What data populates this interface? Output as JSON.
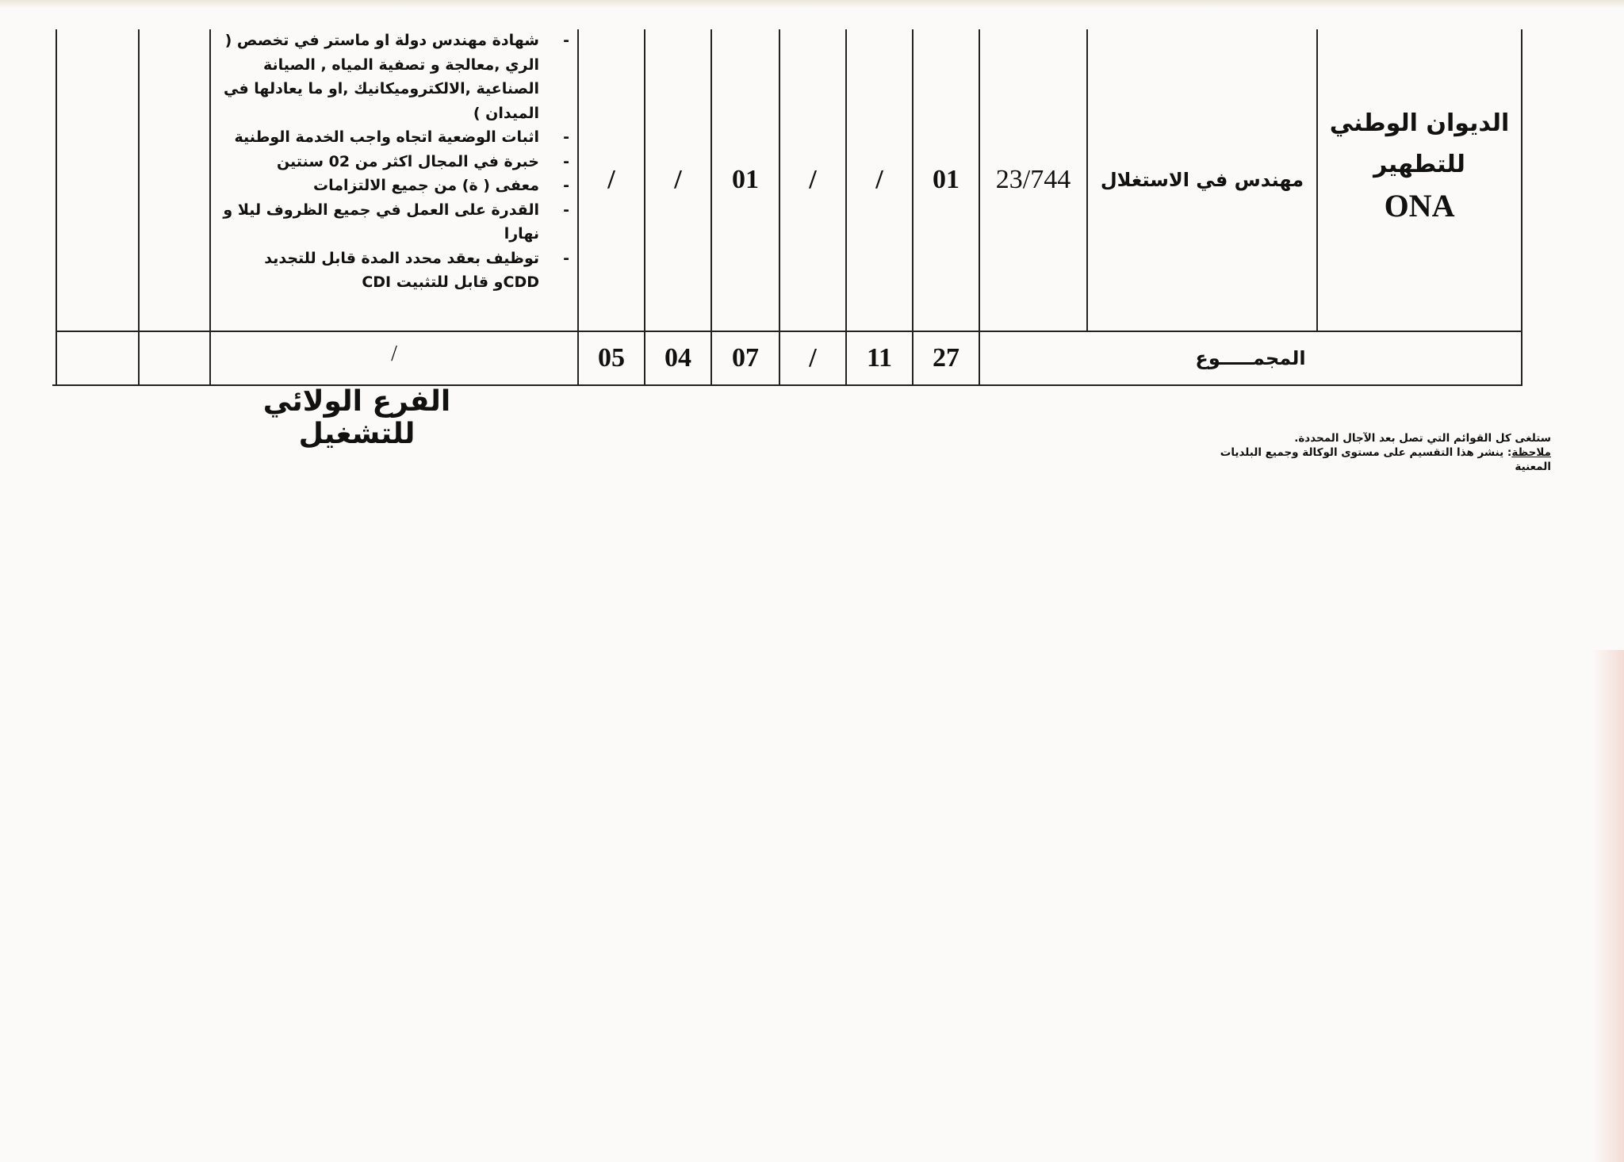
{
  "row": {
    "organization": {
      "line1": "الديوان الوطني",
      "line2": "للتطهير",
      "abbr": "ONA"
    },
    "position": "مهندس في الاستغلال",
    "code": "23/744",
    "counts": [
      "01",
      "/",
      "/",
      "01",
      "/",
      "/"
    ],
    "requirements": [
      "شهادة مهندس دولة او ماستر في تخصص ( الري ,معالجة و تصفية المياه , الصيانة الصناعية ,الالكتروميكانيك ,او ما يعادلها في الميدان )",
      "اثبات الوضعية اتجاه واجب الخدمة الوطنية",
      "خبرة في المجال اكثر من 02 سنتين",
      "معفى ( ة) من جميع الالتزامات",
      "القدرة على العمل في جميع الظروف ليلا و نهارا",
      "توظيف بعقد محدد المدة قابل للتجديد CDDو قابل للتثبيت CDI"
    ]
  },
  "total": {
    "label": "المجمـــــوع",
    "counts": [
      "27",
      "11",
      "/",
      "07",
      "04",
      "05"
    ],
    "requirements": "/"
  },
  "signature": "الفرع الولائي للتشغيل",
  "notes": {
    "line1": "ستلغى كل القوائم التي تصل بعد الآجال المحددة.",
    "label": "ملاحظة",
    "line2": ": ينشر هذا التقسيم على مستوى الوكالة وجميع البلديات المعنية"
  }
}
